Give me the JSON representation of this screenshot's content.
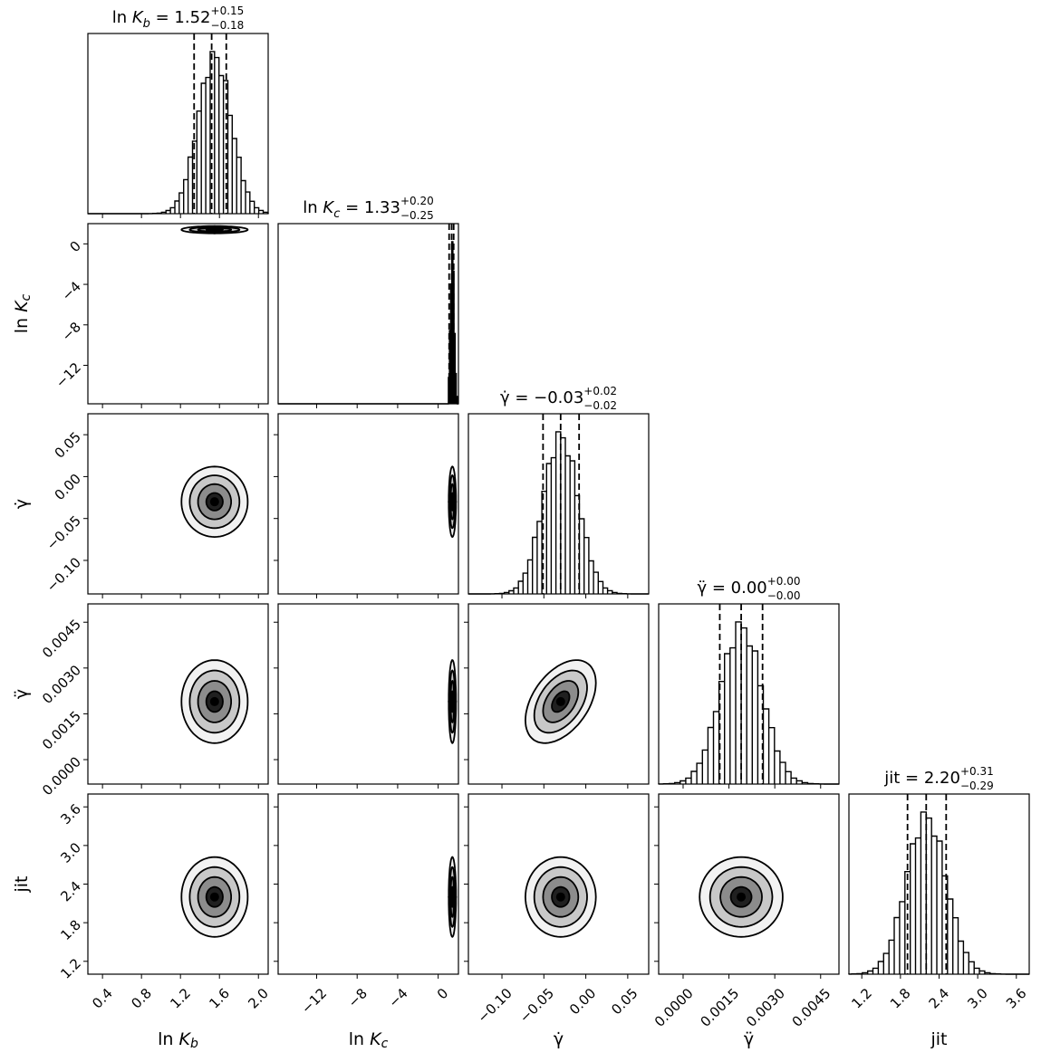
{
  "chart_data": {
    "type": "corner",
    "parameters": [
      {
        "key": "lnKb",
        "axis_label": {
          "pre": "ln",
          "var": "K",
          "sub": "b"
        },
        "title": {
          "lhs": "ln K_b",
          "median": "1.52",
          "plus": "+0.15",
          "minus": "−0.18"
        },
        "range": [
          0.25,
          2.1
        ],
        "ticks": [
          0.4,
          0.8,
          1.2,
          1.6,
          2.0
        ],
        "tick_labels": [
          "0.4",
          "0.8",
          "1.2",
          "1.6",
          "2.0"
        ],
        "quantiles": [
          1.34,
          1.52,
          1.67
        ]
      },
      {
        "key": "lnKc",
        "axis_label": {
          "pre": "ln",
          "var": "K",
          "sub": "c"
        },
        "title": {
          "lhs": "ln K_c",
          "median": "1.33",
          "plus": "+0.20",
          "minus": "−0.25"
        },
        "range": [
          -15.8,
          2.0
        ],
        "ticks": [
          -12,
          -8,
          -4,
          0
        ],
        "tick_labels": [
          "−12",
          "−8",
          "−4",
          "0"
        ],
        "quantiles": [
          1.08,
          1.33,
          1.53
        ]
      },
      {
        "key": "gammadot",
        "axis_label": {
          "pre": "",
          "var": "γ̇",
          "sub": ""
        },
        "title": {
          "lhs": "γ̇",
          "median": "−0.03",
          "plus": "+0.02",
          "minus": "−0.02"
        },
        "range": [
          -0.14,
          0.075
        ],
        "ticks": [
          -0.1,
          -0.05,
          0.0,
          0.05
        ],
        "tick_labels": [
          "−0.10",
          "−0.05",
          "0.00",
          "0.05"
        ],
        "quantiles": [
          -0.051,
          -0.03,
          -0.008
        ]
      },
      {
        "key": "gammaddot",
        "axis_label": {
          "pre": "",
          "var": "γ̈",
          "sub": ""
        },
        "title": {
          "lhs": "γ̈",
          "median": "0.00",
          "plus": "+0.00",
          "minus": "−0.00"
        },
        "range": [
          -0.0008,
          0.0051
        ],
        "ticks": [
          0.0,
          0.0015,
          0.003,
          0.0045
        ],
        "tick_labels": [
          "0.0000",
          "0.0015",
          "0.0030",
          "0.0045"
        ],
        "quantiles": [
          0.0012,
          0.0019,
          0.0026
        ]
      },
      {
        "key": "jit",
        "axis_label": {
          "pre": "",
          "var": "jit",
          "sub": ""
        },
        "title": {
          "lhs": "jit",
          "median": "2.20",
          "plus": "+0.31",
          "minus": "−0.29"
        },
        "range": [
          1.0,
          3.8
        ],
        "ticks": [
          1.2,
          1.8,
          2.4,
          3.0,
          3.6
        ],
        "tick_labels": [
          "1.2",
          "1.8",
          "2.4",
          "3.0",
          "3.6"
        ],
        "quantiles": [
          1.91,
          2.2,
          2.51
        ]
      }
    ],
    "posterior": {
      "mean": [
        1.55,
        1.4,
        -0.03,
        0.0019,
        2.2
      ],
      "sd": [
        0.17,
        0.18,
        0.021,
        0.00068,
        0.31
      ],
      "correlations": [
        {
          "i": 3,
          "j": 2,
          "rho": 0.45
        }
      ]
    },
    "contour_levels_sigma": [
      0.5,
      1.0,
      1.5,
      2.0
    ],
    "truncated_edge": {
      "param": "lnKc",
      "upper": 1.9
    },
    "colors": {
      "line": "#000000",
      "background": "#ffffff"
    }
  }
}
